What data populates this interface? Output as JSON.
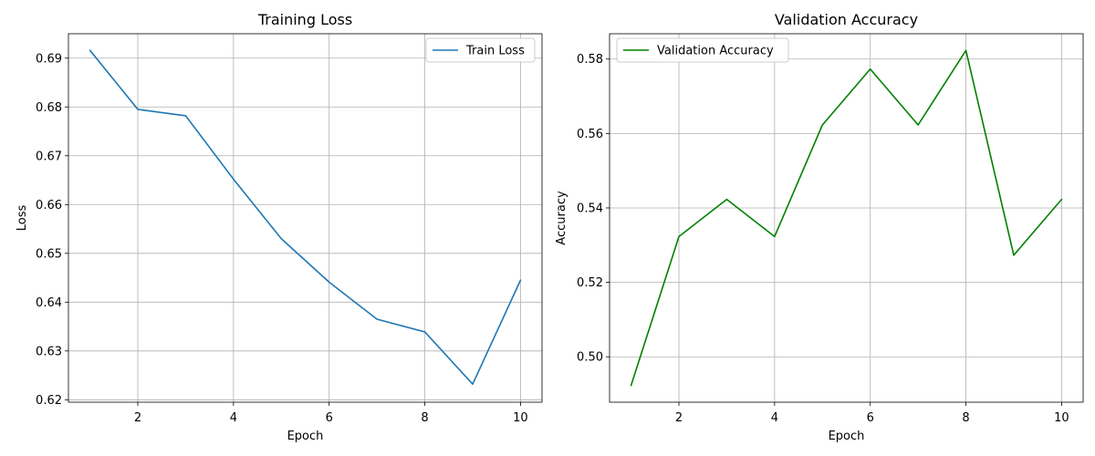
{
  "chart_data": [
    {
      "type": "line",
      "title": "Training Loss",
      "xlabel": "Epoch",
      "ylabel": "Loss",
      "xlim": [
        0.55,
        10.45
      ],
      "ylim": [
        0.6195,
        0.695
      ],
      "xticks": [
        2,
        4,
        6,
        8,
        10
      ],
      "yticks": [
        0.62,
        0.63,
        0.64,
        0.65,
        0.66,
        0.67,
        0.68,
        0.69
      ],
      "xtick_labels": [
        "2",
        "4",
        "6",
        "8",
        "10"
      ],
      "ytick_labels": [
        "0.62",
        "0.63",
        "0.64",
        "0.65",
        "0.66",
        "0.67",
        "0.68",
        "0.69"
      ],
      "grid": true,
      "legend_position": "top-right",
      "x": [
        1,
        2,
        3,
        4,
        5,
        6,
        7,
        8,
        9,
        10
      ],
      "series": [
        {
          "name": "Train Loss",
          "color": "#1f77b4",
          "values": [
            0.6916,
            0.6795,
            0.6782,
            0.6652,
            0.653,
            0.6441,
            0.6365,
            0.6339,
            0.6232,
            0.6445
          ]
        }
      ]
    },
    {
      "type": "line",
      "title": "Validation Accuracy",
      "xlabel": "Epoch",
      "ylabel": "Accuracy",
      "xlim": [
        0.55,
        10.45
      ],
      "ylim": [
        0.4878,
        0.5868
      ],
      "xticks": [
        2,
        4,
        6,
        8,
        10
      ],
      "yticks": [
        0.5,
        0.52,
        0.54,
        0.56,
        0.58
      ],
      "xtick_labels": [
        "2",
        "4",
        "6",
        "8",
        "10"
      ],
      "ytick_labels": [
        "0.50",
        "0.52",
        "0.54",
        "0.56",
        "0.58"
      ],
      "grid": true,
      "legend_position": "top-left",
      "x": [
        1,
        2,
        3,
        4,
        5,
        6,
        7,
        8,
        9,
        10
      ],
      "series": [
        {
          "name": "Validation Accuracy",
          "color": "#008000",
          "values": [
            0.4923,
            0.5323,
            0.5423,
            0.5323,
            0.5623,
            0.5773,
            0.5623,
            0.5823,
            0.5273,
            0.5423
          ]
        }
      ]
    }
  ]
}
